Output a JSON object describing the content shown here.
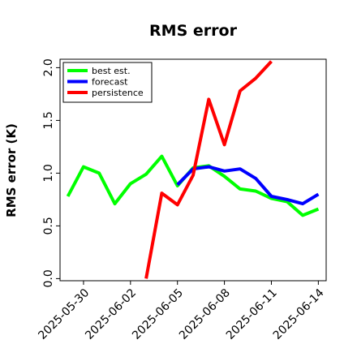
{
  "chart_data": {
    "type": "line",
    "title": "RMS error",
    "xlabel": "",
    "ylabel": "RMS error (K)",
    "ylim": [
      -0.02,
      2.08
    ],
    "xlim": [
      "2025-05-28T12:00",
      "2025-06-14T12:00"
    ],
    "y_ticks": [
      0.0,
      0.5,
      1.0,
      1.5,
      2.0
    ],
    "y_tick_labels": [
      "0.0",
      "0.5",
      "1.0",
      "1.5",
      "2.0"
    ],
    "x_ticks": [
      "2025-05-30",
      "2025-06-02",
      "2025-06-05",
      "2025-06-08",
      "2025-06-11",
      "2025-06-14"
    ],
    "x_tick_labels": [
      "2025-05-30",
      "2025-06-02",
      "2025-06-05",
      "2025-06-08",
      "2025-06-11",
      "2025-06-14"
    ],
    "highlight_tick": "2025-06-05",
    "highlight_color": "#228B22",
    "grid": false,
    "legend_position": "top-left",
    "series": [
      {
        "name": "best est.",
        "color": "#00ff00",
        "points": [
          [
            "2025-05-29",
            0.78
          ],
          [
            "2025-05-30",
            1.06
          ],
          [
            "2025-05-31",
            1.0
          ],
          [
            "2025-06-01",
            0.71
          ],
          [
            "2025-06-02",
            0.9
          ],
          [
            "2025-06-03",
            0.99
          ],
          [
            "2025-06-04",
            1.16
          ],
          [
            "2025-06-05",
            0.88
          ],
          [
            "2025-06-06",
            1.05
          ],
          [
            "2025-06-07",
            1.07
          ],
          [
            "2025-06-08",
            0.97
          ],
          [
            "2025-06-09",
            0.85
          ],
          [
            "2025-06-10",
            0.83
          ],
          [
            "2025-06-11",
            0.76
          ],
          [
            "2025-06-12",
            0.73
          ],
          [
            "2025-06-13",
            0.6
          ],
          [
            "2025-06-14",
            0.66
          ]
        ]
      },
      {
        "name": "forecast",
        "color": "#0000ff",
        "points": [
          [
            "2025-06-05",
            0.89
          ],
          [
            "2025-06-06",
            1.04
          ],
          [
            "2025-06-07",
            1.06
          ],
          [
            "2025-06-08",
            1.02
          ],
          [
            "2025-06-09",
            1.04
          ],
          [
            "2025-06-10",
            0.95
          ],
          [
            "2025-06-11",
            0.78
          ],
          [
            "2025-06-12",
            0.75
          ],
          [
            "2025-06-13",
            0.71
          ],
          [
            "2025-06-14",
            0.8
          ]
        ]
      },
      {
        "name": "persistence",
        "color": "#ff0000",
        "points": [
          [
            "2025-06-03",
            0.0
          ],
          [
            "2025-06-04",
            0.81
          ],
          [
            "2025-06-05",
            0.7
          ],
          [
            "2025-06-06",
            0.98
          ],
          [
            "2025-06-07",
            1.7
          ],
          [
            "2025-06-08",
            1.27
          ],
          [
            "2025-06-09",
            1.78
          ],
          [
            "2025-06-10",
            1.9
          ],
          [
            "2025-06-11",
            2.06
          ]
        ]
      }
    ]
  }
}
